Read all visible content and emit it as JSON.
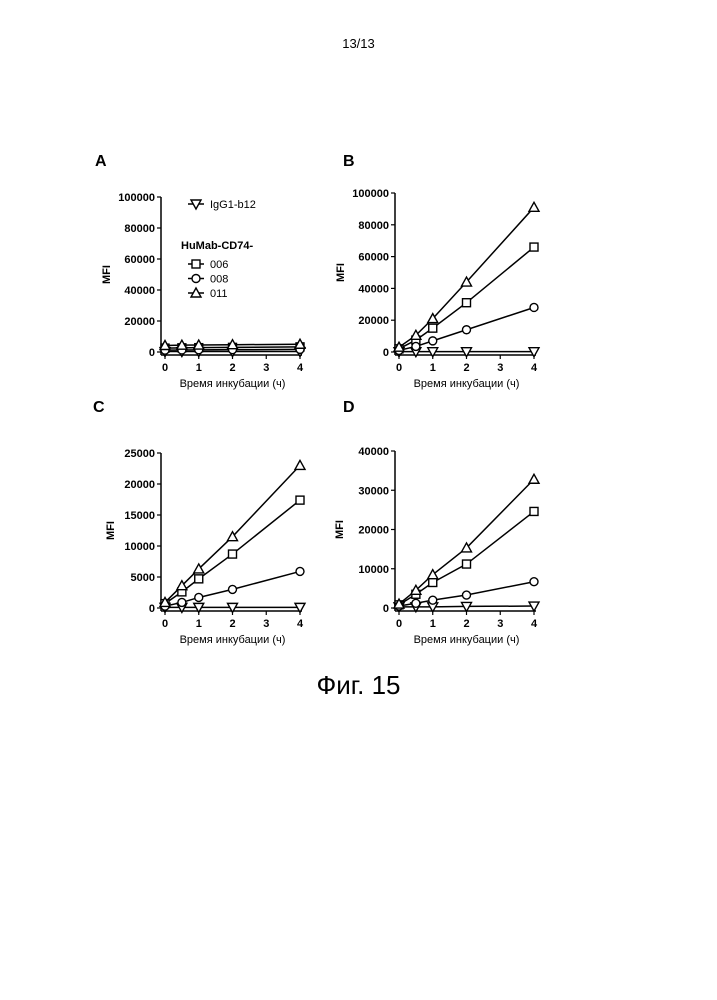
{
  "page_number": "13/13",
  "figure_caption": "Фиг. 15",
  "legend": {
    "control": "IgG1-b12",
    "group_title": "HuMab-CD74-",
    "items": [
      "006",
      "008",
      "011"
    ]
  },
  "chart_data": [
    {
      "panel": "A",
      "type": "line",
      "xlabel": "Время инкубации (ч)",
      "ylabel": "MFI",
      "xlim": [
        0,
        4
      ],
      "ylim": [
        0,
        100000
      ],
      "xticks": [
        0,
        1,
        2,
        3,
        4
      ],
      "yticks": [
        0,
        20000,
        40000,
        60000,
        80000,
        100000
      ],
      "x": [
        0,
        0.5,
        1,
        2,
        4
      ],
      "series": [
        {
          "name": "IgG1-b12",
          "marker": "triangle-down",
          "values": [
            300,
            300,
            300,
            300,
            300
          ]
        },
        {
          "name": "006",
          "marker": "square",
          "values": [
            2500,
            2700,
            2800,
            3000,
            3300
          ]
        },
        {
          "name": "008",
          "marker": "circle",
          "values": [
            1200,
            1300,
            1400,
            1500,
            1700
          ]
        },
        {
          "name": "011",
          "marker": "triangle-up",
          "values": [
            4200,
            4400,
            4500,
            4700,
            5000
          ]
        }
      ]
    },
    {
      "panel": "B",
      "type": "line",
      "xlabel": "Время инкубации (ч)",
      "ylabel": "MFI",
      "xlim": [
        0,
        4
      ],
      "ylim": [
        0,
        100000
      ],
      "xticks": [
        0,
        1,
        2,
        3,
        4
      ],
      "yticks": [
        0,
        20000,
        40000,
        60000,
        80000,
        100000
      ],
      "x": [
        0,
        0.5,
        1,
        2,
        4
      ],
      "series": [
        {
          "name": "IgG1-b12",
          "marker": "triangle-down",
          "values": [
            200,
            200,
            200,
            200,
            200
          ]
        },
        {
          "name": "006",
          "marker": "square",
          "values": [
            2000,
            7500,
            15000,
            31000,
            66000
          ]
        },
        {
          "name": "008",
          "marker": "circle",
          "values": [
            1000,
            3500,
            7000,
            14000,
            28000
          ]
        },
        {
          "name": "011",
          "marker": "triangle-up",
          "values": [
            3000,
            10500,
            21000,
            44000,
            91000
          ]
        }
      ]
    },
    {
      "panel": "C",
      "type": "line",
      "xlabel": "Время инкубации (ч)",
      "ylabel": "MFI",
      "xlim": [
        0,
        4
      ],
      "ylim": [
        0,
        25000
      ],
      "xticks": [
        0,
        1,
        2,
        3,
        4
      ],
      "yticks": [
        0,
        5000,
        10000,
        15000,
        20000,
        25000
      ],
      "x": [
        0,
        0.5,
        1,
        2,
        4
      ],
      "series": [
        {
          "name": "IgG1-b12",
          "marker": "triangle-down",
          "values": [
            100,
            100,
            100,
            100,
            100
          ]
        },
        {
          "name": "006",
          "marker": "square",
          "values": [
            700,
            2600,
            4700,
            8700,
            17400
          ]
        },
        {
          "name": "008",
          "marker": "circle",
          "values": [
            300,
            900,
            1700,
            3000,
            5900
          ]
        },
        {
          "name": "011",
          "marker": "triangle-up",
          "values": [
            900,
            3600,
            6300,
            11500,
            23000
          ]
        }
      ]
    },
    {
      "panel": "D",
      "type": "line",
      "xlabel": "Время инкубации (ч)",
      "ylabel": "MFI",
      "xlim": [
        0,
        4
      ],
      "ylim": [
        0,
        40000
      ],
      "xticks": [
        0,
        1,
        2,
        3,
        4
      ],
      "yticks": [
        0,
        10000,
        20000,
        30000,
        40000
      ],
      "x": [
        0,
        0.5,
        1,
        2,
        4
      ],
      "series": [
        {
          "name": "IgG1-b12",
          "marker": "triangle-down",
          "values": [
            300,
            300,
            300,
            400,
            500
          ]
        },
        {
          "name": "006",
          "marker": "square",
          "values": [
            800,
            3500,
            6500,
            11200,
            24600
          ]
        },
        {
          "name": "008",
          "marker": "circle",
          "values": [
            500,
            1200,
            2000,
            3300,
            6700
          ]
        },
        {
          "name": "011",
          "marker": "triangle-up",
          "values": [
            1000,
            4500,
            8500,
            15300,
            32800
          ]
        }
      ]
    }
  ]
}
